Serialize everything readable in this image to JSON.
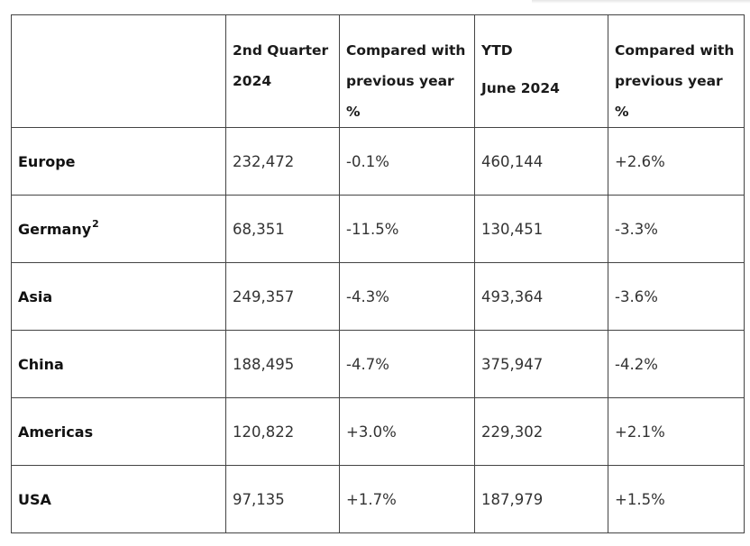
{
  "header": {
    "region": "",
    "q2_line1": "2nd Quarter",
    "q2_line2": "2024",
    "cmp_q_line1": "Compared with",
    "cmp_q_line2": "previous year %",
    "ytd_line1": "YTD",
    "ytd_line2": "June 2024",
    "cmp_ytd_line1": "Compared with",
    "cmp_ytd_line2": "previous year %"
  },
  "rows": [
    {
      "region": "Europe",
      "sup": "",
      "q2": "232,472",
      "q2_change": "-0.1%",
      "ytd": "460,144",
      "ytd_change": "+2.6%"
    },
    {
      "region": "Germany",
      "sup": "2",
      "q2": "68,351",
      "q2_change": "-11.5%",
      "ytd": "130,451",
      "ytd_change": "-3.3%"
    },
    {
      "region": "Asia",
      "sup": "",
      "q2": "249,357",
      "q2_change": "-4.3%",
      "ytd": "493,364",
      "ytd_change": "-3.6%"
    },
    {
      "region": "China",
      "sup": "",
      "q2": "188,495",
      "q2_change": "-4.7%",
      "ytd": "375,947",
      "ytd_change": "-4.2%"
    },
    {
      "region": "Americas",
      "sup": "",
      "q2": "120,822",
      "q2_change": "+3.0%",
      "ytd": "229,302",
      "ytd_change": "+2.1%"
    },
    {
      "region": "USA",
      "sup": "",
      "q2": "97,135",
      "q2_change": "+1.7%",
      "ytd": "187,979",
      "ytd_change": "+1.5%"
    }
  ]
}
